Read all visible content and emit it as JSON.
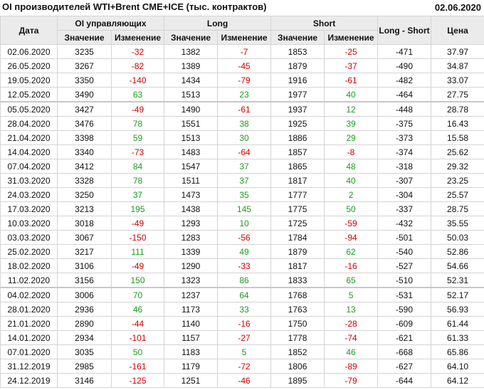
{
  "title": "OI производителей WTI+Brent CME+ICE (тыс. контрактов)",
  "report_date": "02.06.2020",
  "colors": {
    "negative": "#d00000",
    "positive": "#1f9a1f",
    "header_bg": "#ebebeb"
  },
  "header": {
    "date": "Дата",
    "oi": "OI управляющих",
    "long": "Long",
    "short": "Short",
    "long_short": "Long - Short",
    "price": "Цена",
    "value": "Значение",
    "change": "Изменение"
  },
  "rows": [
    [
      "02.06.2020",
      "3235",
      "-32",
      "1382",
      "-7",
      "1853",
      "-25",
      "-471",
      "37.97"
    ],
    [
      "26.05.2020",
      "3267",
      "-82",
      "1389",
      "-45",
      "1879",
      "-37",
      "-490",
      "34.87"
    ],
    [
      "19.05.2020",
      "3350",
      "-140",
      "1434",
      "-79",
      "1916",
      "-61",
      "-482",
      "33.07"
    ],
    [
      "12.05.2020",
      "3490",
      "63",
      "1513",
      "23",
      "1977",
      "40",
      "-464",
      "27.75"
    ],
    [
      "05.05.2020",
      "3427",
      "-49",
      "1490",
      "-61",
      "1937",
      "12",
      "-448",
      "28.78"
    ],
    [
      "28.04.2020",
      "3476",
      "78",
      "1551",
      "38",
      "1925",
      "39",
      "-375",
      "16.43"
    ],
    [
      "21.04.2020",
      "3398",
      "59",
      "1513",
      "30",
      "1886",
      "29",
      "-373",
      "15.58"
    ],
    [
      "14.04.2020",
      "3340",
      "-73",
      "1483",
      "-64",
      "1857",
      "-8",
      "-374",
      "25.62"
    ],
    [
      "07.04.2020",
      "3412",
      "84",
      "1547",
      "37",
      "1865",
      "48",
      "-318",
      "29.32"
    ],
    [
      "31.03.2020",
      "3328",
      "78",
      "1511",
      "37",
      "1817",
      "40",
      "-307",
      "23.25"
    ],
    [
      "24.03.2020",
      "3250",
      "37",
      "1473",
      "35",
      "1777",
      "2",
      "-304",
      "25.57"
    ],
    [
      "17.03.2020",
      "3213",
      "195",
      "1438",
      "145",
      "1775",
      "50",
      "-337",
      "28.75"
    ],
    [
      "10.03.2020",
      "3018",
      "-49",
      "1293",
      "10",
      "1725",
      "-59",
      "-432",
      "35.55"
    ],
    [
      "03.03.2020",
      "3067",
      "-150",
      "1283",
      "-56",
      "1784",
      "-94",
      "-501",
      "50.03"
    ],
    [
      "25.02.2020",
      "3217",
      "111",
      "1339",
      "49",
      "1879",
      "62",
      "-540",
      "52.86"
    ],
    [
      "18.02.2020",
      "3106",
      "-49",
      "1290",
      "-33",
      "1817",
      "-16",
      "-527",
      "54.66"
    ],
    [
      "11.02.2020",
      "3156",
      "150",
      "1323",
      "86",
      "1833",
      "65",
      "-510",
      "52.31"
    ],
    [
      "04.02.2020",
      "3006",
      "70",
      "1237",
      "64",
      "1768",
      "5",
      "-531",
      "52.17"
    ],
    [
      "28.01.2020",
      "2936",
      "46",
      "1173",
      "33",
      "1763",
      "13",
      "-590",
      "56.93"
    ],
    [
      "21.01.2020",
      "2890",
      "-44",
      "1140",
      "-16",
      "1750",
      "-28",
      "-609",
      "61.44"
    ],
    [
      "14.01.2020",
      "2934",
      "-101",
      "1157",
      "-27",
      "1778",
      "-74",
      "-621",
      "61.33"
    ],
    [
      "07.01.2020",
      "3035",
      "50",
      "1183",
      "5",
      "1852",
      "46",
      "-668",
      "65.86"
    ],
    [
      "31.12.2019",
      "2985",
      "-161",
      "1179",
      "-72",
      "1806",
      "-89",
      "-627",
      "64.10"
    ],
    [
      "24.12.2019",
      "3146",
      "-125",
      "1251",
      "-46",
      "1895",
      "-79",
      "-644",
      "64.12"
    ]
  ]
}
